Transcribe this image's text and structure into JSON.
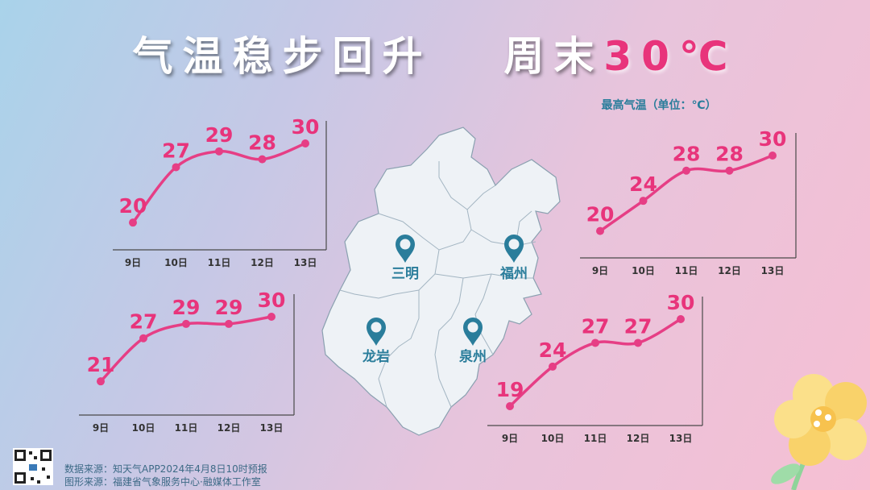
{
  "header": {
    "title_main": "气温稳步回升",
    "title_weekend": "周末",
    "title_highlight": "30℃"
  },
  "legend_label": "最高气温（单位：℃）",
  "cities": [
    {
      "name": "三明"
    },
    {
      "name": "福州"
    },
    {
      "name": "龙岩"
    },
    {
      "name": "泉州"
    }
  ],
  "footer": {
    "data_source": "数据来源：知天气APP2024年4月8日10时预报",
    "graphic_source": "图形来源：福建省气象服务中心·融媒体工作室"
  },
  "colors": {
    "line": "#e63e85",
    "value_text": "#e8347b",
    "axis": "#4a4a4a",
    "map_fill": "#eef2f6",
    "pin": "#2a7d9b"
  },
  "chart_data": [
    {
      "type": "line",
      "categories": [
        "9日",
        "10日",
        "11日",
        "12日",
        "13日"
      ],
      "values": [
        20,
        27,
        29,
        28,
        30
      ]
    },
    {
      "type": "line",
      "categories": [
        "9日",
        "10日",
        "11日",
        "12日",
        "13日"
      ],
      "values": [
        21,
        27,
        29,
        29,
        30
      ]
    },
    {
      "type": "line",
      "categories": [
        "9日",
        "10日",
        "11日",
        "12日",
        "13日"
      ],
      "values": [
        20,
        24,
        28,
        28,
        30
      ]
    },
    {
      "type": "line",
      "categories": [
        "9日",
        "10日",
        "11日",
        "12日",
        "13日"
      ],
      "values": [
        19,
        24,
        27,
        27,
        30
      ]
    }
  ]
}
